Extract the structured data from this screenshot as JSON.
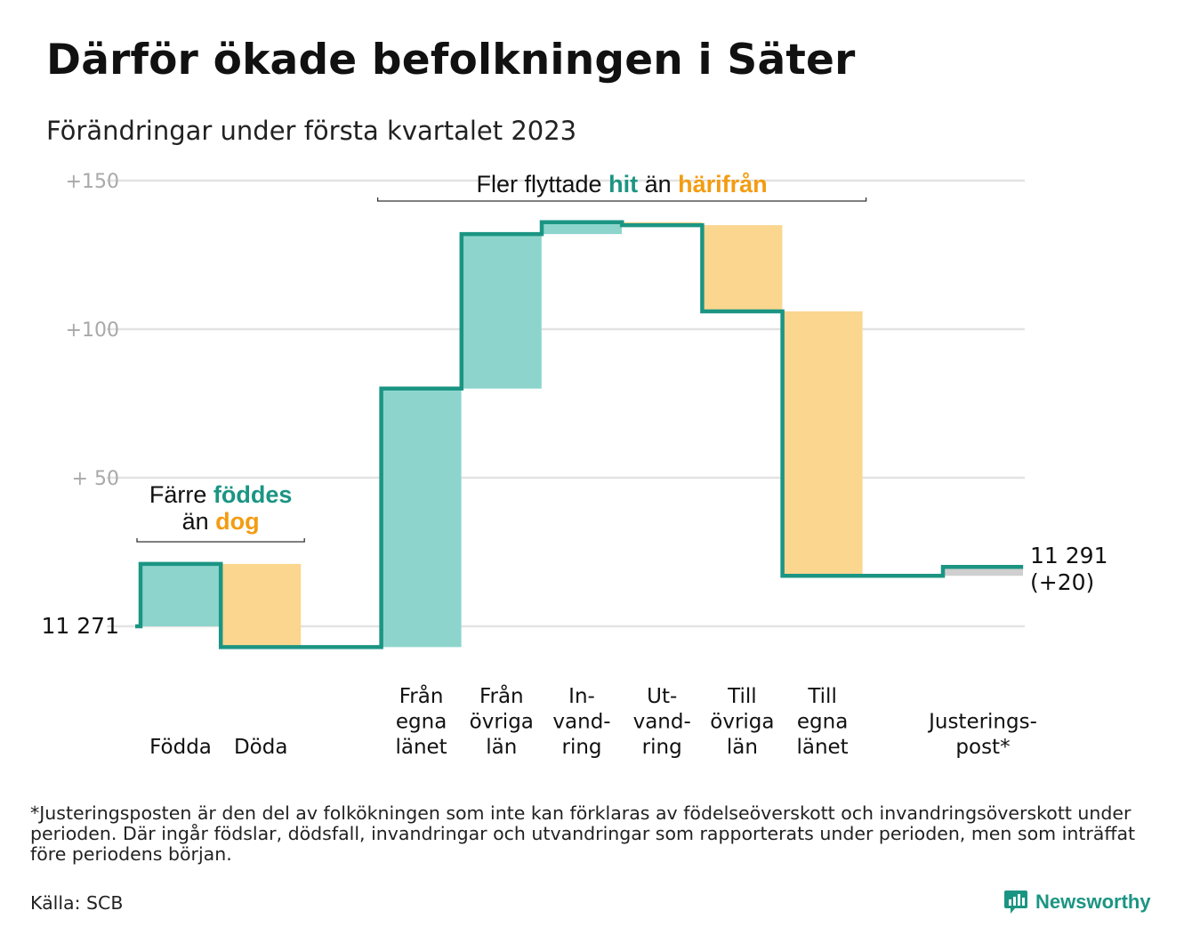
{
  "title": "Därför ökade befolkningen i Säter",
  "subtitle": "Förändringar under första kvartalet 2023",
  "footnote": "*Justeringsposten är den del av folkökningen som inte kan förklaras av födelseöverskott och invandringsöverskott under perioden. Där ingår födslar, dödsfall, invandringar och utvandringar som rapporterats under perioden, men som inträffat före periodens början.",
  "source": "Källa: SCB",
  "brand": "Newsworthy",
  "colors": {
    "increase": "#8dd5cc",
    "decrease": "#fbd68f",
    "adjustment": "#cfcfcf",
    "step_line": "#1b9583",
    "grid": "#e3e3e3",
    "tick_text": "#a9a9a9",
    "accent_teal": "#1b9583",
    "accent_orange": "#f39c12"
  },
  "icons": {
    "brand_logo": "bar-chart-speech-bubble-icon"
  },
  "chart_data": {
    "type": "waterfall",
    "start_label": "11 271",
    "end_label": "11 291",
    "end_change_label": "(+20)",
    "y_ticks": [
      {
        "value": 150,
        "label": "+150"
      },
      {
        "value": 100,
        "label": "+100"
      },
      {
        "value": 50,
        "label": "+ 50"
      },
      {
        "value": 0,
        "label": ""
      }
    ],
    "ylim": [
      -9,
      155
    ],
    "grid": true,
    "steps": [
      {
        "label": "Födda",
        "value": 21,
        "kind": "increase"
      },
      {
        "label": "Döda",
        "value": -28,
        "kind": "decrease"
      },
      {
        "label": "",
        "value": 0,
        "kind": "gap"
      },
      {
        "label": "Från\negna\nlänet",
        "value": 87,
        "kind": "increase"
      },
      {
        "label": "Från\növriga\nlän",
        "value": 52,
        "kind": "increase"
      },
      {
        "label": "In-\nvand-\nring",
        "value": 4,
        "kind": "increase"
      },
      {
        "label": "Ut-\nvand-\nring",
        "value": -1,
        "kind": "decrease"
      },
      {
        "label": "Till\növriga\nlän",
        "value": -29,
        "kind": "decrease"
      },
      {
        "label": "Till\negna\nlänet",
        "value": -89,
        "kind": "decrease"
      },
      {
        "label": "",
        "value": 0,
        "kind": "gap"
      },
      {
        "label": "Justerings-\npost*",
        "value": 3,
        "kind": "adjustment"
      }
    ],
    "annotations": [
      {
        "lines": [
          [
            {
              "text": "Färre ",
              "color": "plain"
            },
            {
              "text": "föddes",
              "color": "teal"
            }
          ],
          [
            {
              "text": "än ",
              "color": "plain"
            },
            {
              "text": "dog",
              "color": "orange"
            }
          ]
        ],
        "bracket_steps": [
          0,
          1
        ]
      },
      {
        "lines": [
          [
            {
              "text": "Fler flyttade ",
              "color": "plain"
            },
            {
              "text": "hit",
              "color": "teal"
            },
            {
              "text": " än ",
              "color": "plain"
            },
            {
              "text": "härifrån",
              "color": "orange"
            }
          ]
        ],
        "bracket_steps": [
          3,
          8
        ]
      }
    ]
  }
}
